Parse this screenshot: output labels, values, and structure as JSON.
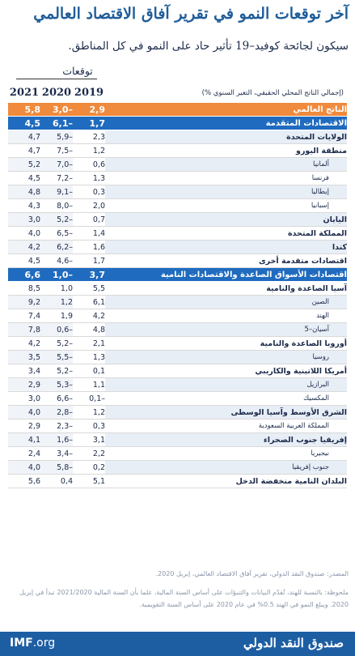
{
  "title": "آخر توقعات النمو في تقرير آفاق الاقتصاد العالمي",
  "subtitle": "سيكون لجائحة كوفيد–19 تأثير حاد على النمو في كل المناطق.",
  "projections_label": "توقعات",
  "unit_label": "(إجمالي الناتج المحلي الحقيقي، التغير السنوي %)",
  "chart_data": {
    "type": "table",
    "columns": [
      "2019",
      "2020",
      "2021"
    ],
    "rows": [
      {
        "label": "الناتج العالمي",
        "values": [
          "2,9",
          "3,0–",
          "5,8"
        ],
        "style": "world"
      },
      {
        "label": "الاقتصادات المتقدمة",
        "values": [
          "1,7",
          "6,1–",
          "4,5"
        ],
        "style": "agg"
      },
      {
        "label": "الولايات المتحدة",
        "values": [
          "2,3",
          "5,9–",
          "4,7"
        ],
        "style": "grp"
      },
      {
        "label": "منطقة اليورو",
        "values": [
          "1,2",
          "7,5–",
          "4,7"
        ],
        "style": "grp"
      },
      {
        "label": "ألمانيا",
        "values": [
          "0,6",
          "7,0–",
          "5,2"
        ],
        "style": "sub"
      },
      {
        "label": "فرنسا",
        "values": [
          "1,3",
          "7,2–",
          "4,5"
        ],
        "style": "sub"
      },
      {
        "label": "إيطاليا",
        "values": [
          "0,3",
          "9,1–",
          "4,8"
        ],
        "style": "sub"
      },
      {
        "label": "إسبانيا",
        "values": [
          "2,0",
          "8,0–",
          "4,3"
        ],
        "style": "sub"
      },
      {
        "label": "اليابان",
        "values": [
          "0,7",
          "5,2–",
          "3,0"
        ],
        "style": "grp"
      },
      {
        "label": "المملكة المتحدة",
        "values": [
          "1,4",
          "6,5–",
          "4,0"
        ],
        "style": "grp"
      },
      {
        "label": "كندا",
        "values": [
          "1,6",
          "6,2–",
          "4,2"
        ],
        "style": "grp"
      },
      {
        "label": "اقتصادات متقدمة أخرى",
        "values": [
          "1,7",
          "4,6–",
          "4,5"
        ],
        "style": "grp"
      },
      {
        "label": "اقتصادات الأسواق الصاعدة والاقتصادات النامية",
        "values": [
          "3,7",
          "1,0–",
          "6,6"
        ],
        "style": "agg"
      },
      {
        "label": "آسيا الصاعدة والنامية",
        "values": [
          "5,5",
          "1,0",
          "8,5"
        ],
        "style": "grp"
      },
      {
        "label": "الصين",
        "values": [
          "6,1",
          "1,2",
          "9,2"
        ],
        "style": "sub"
      },
      {
        "label": "الهند",
        "values": [
          "4,2",
          "1,9",
          "7,4"
        ],
        "style": "sub"
      },
      {
        "label": "آسيان–5",
        "values": [
          "4,8",
          "0,6–",
          "7,8"
        ],
        "style": "sub"
      },
      {
        "label": "أوروبا الصاعدة والنامية",
        "values": [
          "2,1",
          "5,2–",
          "4,2"
        ],
        "style": "grp"
      },
      {
        "label": "روسيا",
        "values": [
          "1,3",
          "5,5–",
          "3,5"
        ],
        "style": "sub"
      },
      {
        "label": "أمريكا اللاتينية والكاريبي",
        "values": [
          "0,1",
          "5,2–",
          "3,4"
        ],
        "style": "grp"
      },
      {
        "label": "البرازيل",
        "values": [
          "1,1",
          "5,3–",
          "2,9"
        ],
        "style": "sub"
      },
      {
        "label": "المكسيك",
        "values": [
          "0,1–",
          "6,6–",
          "3,0"
        ],
        "style": "sub"
      },
      {
        "label": "الشرق الأوسط وآسيا الوسطى",
        "values": [
          "1,2",
          "2,8–",
          "4,0"
        ],
        "style": "grp"
      },
      {
        "label": "المملكة العربية السعودية",
        "values": [
          "0,3",
          "2,3–",
          "2,9"
        ],
        "style": "sub"
      },
      {
        "label": "إفريقيا جنوب الصحراء",
        "values": [
          "3,1",
          "1,6–",
          "4,1"
        ],
        "style": "grp"
      },
      {
        "label": "نيجيريا",
        "values": [
          "2,2",
          "3,4–",
          "2,4"
        ],
        "style": "sub"
      },
      {
        "label": "جنوب إفريقيا",
        "values": [
          "0,2",
          "5,8–",
          "4,0"
        ],
        "style": "sub"
      },
      {
        "label": "البلدان النامية منخفضة الدخل",
        "values": [
          "5,1",
          "0,4",
          "5,6"
        ],
        "style": "grp"
      }
    ]
  },
  "source": "المصدر: صندوق النقد الدولي، تقرير آفاق الاقتصاد العالمي، إبريل 2020.",
  "note": "ملحوظة: بالنسبة للهند، تُقدّم البيانات والتنبؤات على أساس السنة المالية، علما بأن السنة المالية 2021/2020 تبدأ في إبريل 2020. ويبلغ النمو في الهند 0.5% في عام 2020 على أساس السنة التقويمية.",
  "footer": {
    "imf_bold": "IMF",
    "imf_rest": ".org",
    "org_name": "صندوق النقد الدولي"
  },
  "colors": {
    "title": "#1f5d99",
    "world_row": "#f08a3c",
    "aggregate_row": "#1f6bbf",
    "footer": "#1d5ea3"
  }
}
